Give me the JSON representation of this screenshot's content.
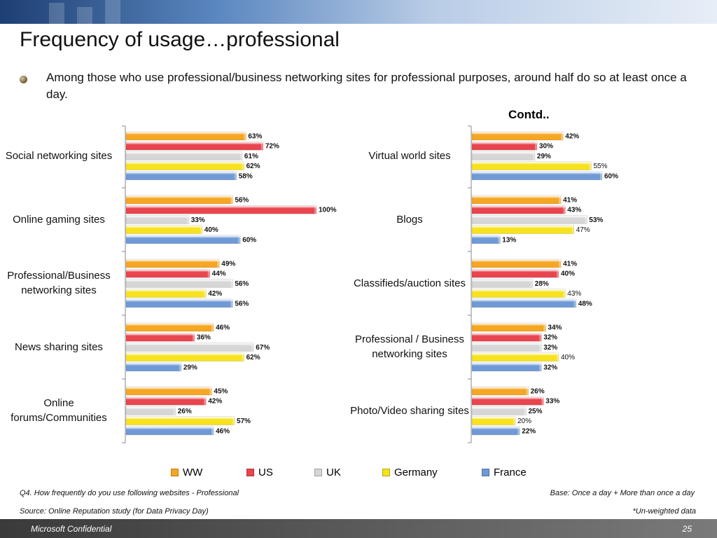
{
  "slide": {
    "title": "Frequency of usage…professional",
    "bullet": "Among those who use professional/business networking sites for professional purposes, around half do so  at least once a day.",
    "contd": "Contd..",
    "question": "Q4. How frequently do you use following websites - Professional",
    "base": "Base: Once a day + More than once a day",
    "source": "Source: Online Reputation study (for Data Privacy Day)",
    "unweighted": "*Un-weighted data",
    "footer_left": "Microsoft Confidential",
    "page_number": "25"
  },
  "colors": {
    "WW": "#f5a623",
    "US": "#e8454f",
    "UK": "#d6d6d6",
    "Germany": "#f7e21e",
    "France": "#6f9ad6"
  },
  "chart_data": [
    {
      "type": "bar",
      "orientation": "horizontal",
      "series_names": [
        "WW",
        "US",
        "UK",
        "Germany",
        "France"
      ],
      "categories": [
        {
          "label": "Social networking sites",
          "values": [
            63,
            72,
            61,
            62,
            58
          ],
          "labels": [
            "63%",
            "72%",
            "61%",
            "62%",
            "58%"
          ],
          "bold": [
            true,
            true,
            true,
            true,
            true
          ]
        },
        {
          "label": "Online gaming sites",
          "values": [
            56,
            100,
            33,
            40,
            60
          ],
          "labels": [
            "56%",
            "100%",
            "33%",
            "40%",
            "60%"
          ],
          "bold": [
            true,
            true,
            true,
            true,
            true
          ]
        },
        {
          "label": "Professional/Business networking sites",
          "values": [
            49,
            44,
            56,
            42,
            56
          ],
          "labels": [
            "49%",
            "44%",
            "56%",
            "42%",
            "56%"
          ],
          "bold": [
            true,
            true,
            true,
            true,
            true
          ]
        },
        {
          "label": "News sharing sites",
          "values": [
            46,
            36,
            67,
            62,
            29
          ],
          "labels": [
            "46%",
            "36%",
            "67%",
            "62%",
            "29%"
          ],
          "bold": [
            true,
            true,
            true,
            true,
            true
          ]
        },
        {
          "label": "Online forums/Communities",
          "values": [
            45,
            42,
            26,
            57,
            46
          ],
          "labels": [
            "45%",
            "42%",
            "26%",
            "57%",
            "46%"
          ],
          "bold": [
            true,
            true,
            true,
            true,
            true
          ]
        }
      ],
      "xlim": [
        0,
        100
      ]
    },
    {
      "type": "bar",
      "orientation": "horizontal",
      "series_names": [
        "WW",
        "US",
        "UK",
        "Germany",
        "France"
      ],
      "categories": [
        {
          "label": "Virtual world sites",
          "values": [
            42,
            30,
            29,
            55,
            60
          ],
          "labels": [
            "42%",
            "30%",
            "29%",
            "55%",
            "60%"
          ],
          "bold": [
            true,
            true,
            true,
            false,
            true
          ]
        },
        {
          "label": "Blogs",
          "values": [
            41,
            43,
            53,
            47,
            13
          ],
          "labels": [
            "41%",
            "43%",
            "53%",
            "47%",
            "13%"
          ],
          "bold": [
            true,
            true,
            true,
            false,
            true
          ]
        },
        {
          "label": "Classifieds/auction sites",
          "values": [
            41,
            40,
            28,
            43,
            48
          ],
          "labels": [
            "41%",
            "40%",
            "28%",
            "43%",
            "48%"
          ],
          "bold": [
            true,
            true,
            true,
            false,
            true
          ]
        },
        {
          "label": "Professional / Business networking sites",
          "values": [
            34,
            32,
            32,
            40,
            32
          ],
          "labels": [
            "34%",
            "32%",
            "32%",
            "40%",
            "32%"
          ],
          "bold": [
            true,
            true,
            true,
            false,
            true
          ]
        },
        {
          "label": "Photo/Video sharing sites",
          "values": [
            26,
            33,
            25,
            20,
            22
          ],
          "labels": [
            "26%",
            "33%",
            "25%",
            "20%",
            "22%"
          ],
          "bold": [
            true,
            true,
            true,
            false,
            true
          ]
        }
      ],
      "xlim": [
        0,
        100
      ]
    }
  ],
  "legend": [
    {
      "name": "WW"
    },
    {
      "name": "US"
    },
    {
      "name": "UK"
    },
    {
      "name": "Germany"
    },
    {
      "name": "France"
    }
  ]
}
